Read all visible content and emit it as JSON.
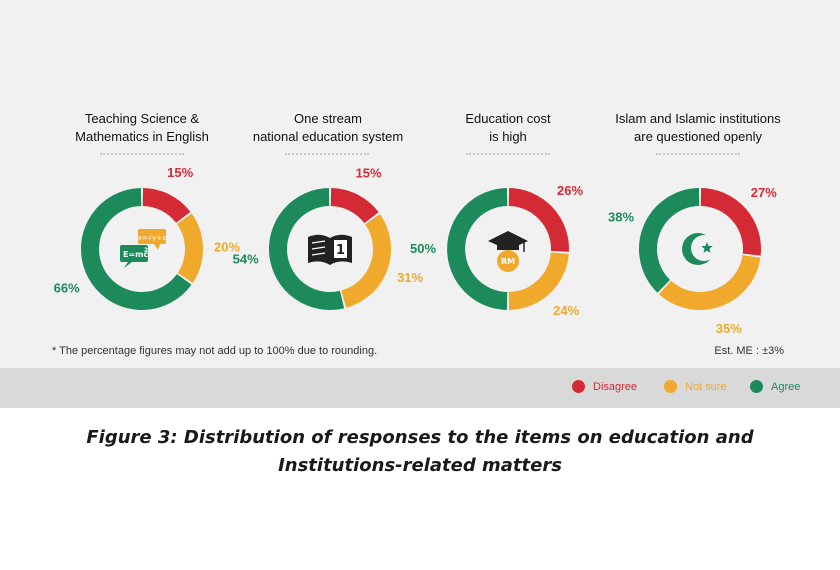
{
  "colors": {
    "disagree": "#d42a35",
    "not_sure": "#f0a92a",
    "agree": "#1d8a5b",
    "icon_dark": "#222222"
  },
  "chart_data": [
    {
      "type": "donut",
      "title_lines": [
        "Teaching Science &",
        "Mathematics in English"
      ],
      "categories": [
        "Disagree",
        "Not sure",
        "Agree"
      ],
      "values": [
        15,
        20,
        66
      ],
      "labels": [
        "15%",
        "20%",
        "66%"
      ],
      "icon": "math-formula-chat-icon",
      "icon_text": [
        "E=mc",
        "2",
        "x=√y+x"
      ]
    },
    {
      "type": "donut",
      "title_lines": [
        "One stream",
        "national education system"
      ],
      "categories": [
        "Disagree",
        "Not sure",
        "Agree"
      ],
      "values": [
        15,
        31,
        54
      ],
      "labels": [
        "15%",
        "31%",
        "54%"
      ],
      "icon": "open-book-icon",
      "icon_text": [
        "1"
      ]
    },
    {
      "type": "donut",
      "title_lines": [
        "Education cost",
        "is high"
      ],
      "categories": [
        "Disagree",
        "Not sure",
        "Agree"
      ],
      "values": [
        26,
        24,
        50
      ],
      "labels": [
        "26%",
        "24%",
        "50%"
      ],
      "icon": "graduation-cap-coin-icon",
      "icon_text": [
        "RM"
      ]
    },
    {
      "type": "donut",
      "title_lines": [
        "Islam and Islamic institutions",
        "are questioned openly"
      ],
      "categories": [
        "Disagree",
        "Not sure",
        "Agree"
      ],
      "values": [
        27,
        35,
        38
      ],
      "labels": [
        "27%",
        "35%",
        "38%"
      ],
      "icon": "crescent-star-icon",
      "icon_text": []
    }
  ],
  "footnote": "* The percentage figures may not add up to 100% due to rounding.",
  "est_me": "Est. ME : ±3%",
  "legend": [
    {
      "label": "Disagree",
      "key": "disagree"
    },
    {
      "label": "Not sure",
      "key": "not_sure"
    },
    {
      "label": "Agree",
      "key": "agree"
    }
  ],
  "caption": {
    "line1": "Figure 3: Distribution of responses to the items on education and",
    "line2": "Institutions-related matters"
  }
}
